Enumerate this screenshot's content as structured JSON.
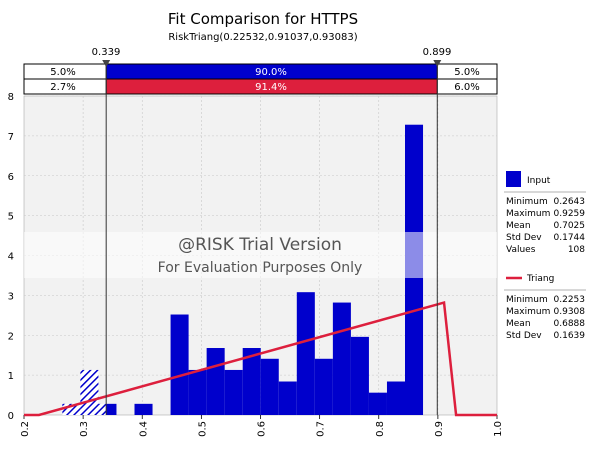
{
  "chart_data": {
    "type": "bar",
    "title": "Fit Comparison for HTTPS",
    "subtitle": "RiskTriang(0.22532,0.91037,0.93083)",
    "xlim": [
      0.2,
      1.0
    ],
    "ylim": [
      0,
      8
    ],
    "x_ticks": [
      "0.2",
      "0.3",
      "0.4",
      "0.5",
      "0.6",
      "0.7",
      "0.8",
      "0.9",
      "1.0"
    ],
    "y_ticks": [
      "0",
      "1",
      "2",
      "3",
      "4",
      "5",
      "6",
      "7",
      "8"
    ],
    "grid": true,
    "markers": {
      "left": {
        "value": 0.339,
        "label": "0.339"
      },
      "right": {
        "value": 0.899,
        "label": "0.899"
      }
    },
    "probability_bands": {
      "input": {
        "left": "5.0%",
        "middle": "90.0%",
        "right": "5.0%",
        "color": "#0000cc"
      },
      "fit": {
        "left": "2.7%",
        "middle": "91.4%",
        "right": "6.0%",
        "color": "#dd1f3d"
      }
    },
    "histogram": {
      "name": "Input",
      "color": "#0000cc",
      "bin_width": 0.0305,
      "bins": [
        {
          "x": 0.2649,
          "y": 0.28
        },
        {
          "x": 0.2954,
          "y": 1.13
        },
        {
          "x": 0.3259,
          "y": 0.28
        },
        {
          "x": 0.3564,
          "y": 0.0
        },
        {
          "x": 0.3869,
          "y": 0.28
        },
        {
          "x": 0.4174,
          "y": 0.0
        },
        {
          "x": 0.4479,
          "y": 2.52
        },
        {
          "x": 0.4784,
          "y": 1.13
        },
        {
          "x": 0.5089,
          "y": 1.68
        },
        {
          "x": 0.5394,
          "y": 1.13
        },
        {
          "x": 0.5699,
          "y": 1.68
        },
        {
          "x": 0.6004,
          "y": 1.41
        },
        {
          "x": 0.6309,
          "y": 0.84
        },
        {
          "x": 0.6614,
          "y": 3.08
        },
        {
          "x": 0.6919,
          "y": 1.41
        },
        {
          "x": 0.7224,
          "y": 2.82
        },
        {
          "x": 0.7529,
          "y": 1.96
        },
        {
          "x": 0.7834,
          "y": 0.56
        },
        {
          "x": 0.8139,
          "y": 0.84
        },
        {
          "x": 0.8444,
          "y": 7.28
        }
      ]
    },
    "fit_curve": {
      "name": "Triang",
      "color": "#dd1f3d",
      "points": [
        [
          0.2,
          0.0
        ],
        [
          0.2253,
          0.0
        ],
        [
          0.9104,
          2.82
        ],
        [
          0.9308,
          0.0
        ],
        [
          1.0,
          0.0
        ]
      ]
    },
    "legend": {
      "placement": "right",
      "input": {
        "label": "Input",
        "stats": [
          {
            "name": "Minimum",
            "value": "0.2643"
          },
          {
            "name": "Maximum",
            "value": "0.9259"
          },
          {
            "name": "Mean",
            "value": "0.7025"
          },
          {
            "name": "Std Dev",
            "value": "0.1744"
          },
          {
            "name": "Values",
            "value": "108"
          }
        ]
      },
      "fit": {
        "label": "Triang",
        "stats": [
          {
            "name": "Minimum",
            "value": "0.2253"
          },
          {
            "name": "Maximum",
            "value": "0.9308"
          },
          {
            "name": "Mean",
            "value": "0.6888"
          },
          {
            "name": "Std Dev",
            "value": "0.1639"
          }
        ]
      }
    },
    "watermark": {
      "line1": "@RISK Trial Version",
      "line2": "For Evaluation Purposes Only"
    }
  }
}
